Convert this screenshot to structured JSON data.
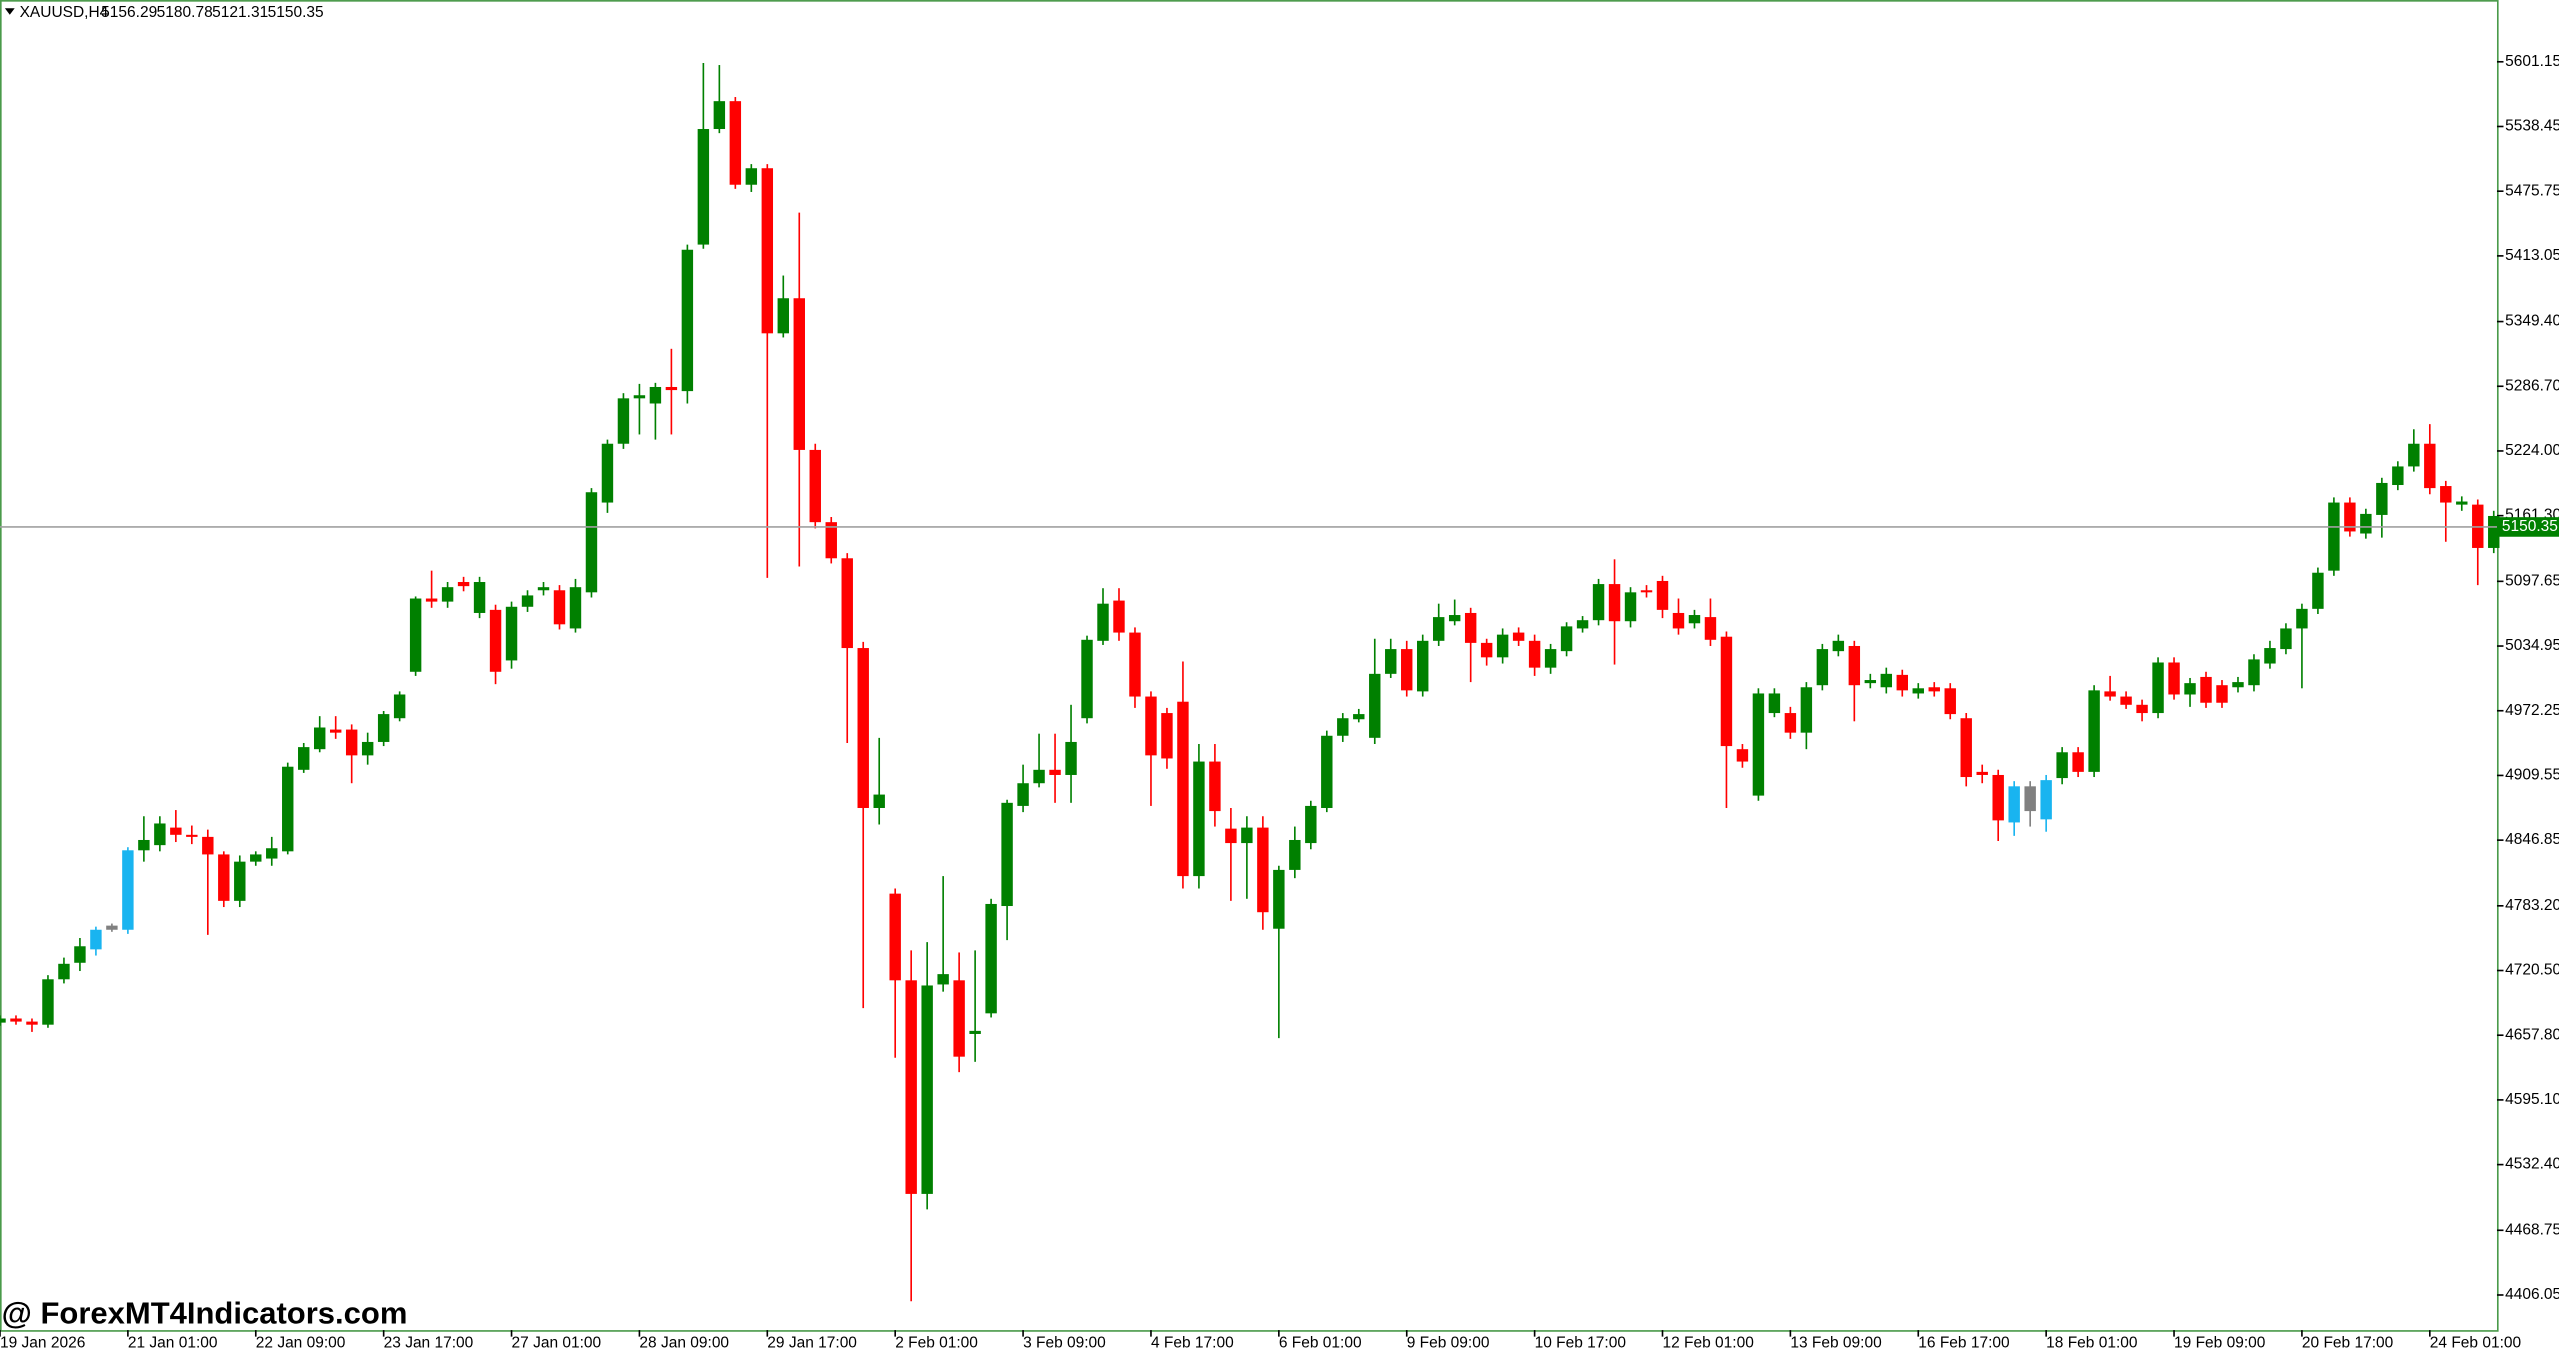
{
  "chart_data": {
    "type": "candlestick",
    "header": {
      "symbol": "XAUUSD,H4",
      "open": 5156.29,
      "high": 5180.78,
      "low": 5121.31,
      "close": 5150.35
    },
    "watermark": "@ ForexMT4Indicators.com",
    "up_color": "#008000",
    "down_color": "#ff0000",
    "ylim": [
      4372,
      5661
    ],
    "yticks": [
      5601.15,
      5538.45,
      5475.75,
      5413.05,
      {
        "value": 5349.4,
        "label": "5349.40"
      },
      {
        "value": 5286.7,
        "label": "5286.70"
      },
      {
        "value": 5224,
        "label": "5224.00"
      },
      {
        "value": 5161.3,
        "label": "5161.30"
      },
      5097.65,
      5034.95,
      4972.25,
      4909.55,
      4846.85,
      {
        "value": 4783.2,
        "label": "4783.20"
      },
      {
        "value": 4720.5,
        "label": "4720.50"
      },
      {
        "value": 4657.8,
        "label": "4657.80"
      },
      {
        "value": 4595.1,
        "label": "4595.10"
      },
      {
        "value": 4532.4,
        "label": "4532.40"
      },
      4468.75,
      4406.05
    ],
    "categories": [
      "19 Jan 2026",
      null,
      null,
      null,
      null,
      null,
      null,
      null,
      "21 Jan 01:00",
      null,
      null,
      null,
      null,
      null,
      null,
      null,
      "22 Jan 09:00",
      null,
      null,
      null,
      null,
      null,
      null,
      null,
      "23 Jan 17:00",
      null,
      null,
      null,
      null,
      null,
      null,
      null,
      "27 Jan 01:00",
      null,
      null,
      null,
      null,
      null,
      null,
      null,
      "28 Jan 09:00",
      null,
      null,
      null,
      null,
      null,
      null,
      null,
      "29 Jan 17:00",
      null,
      null,
      null,
      null,
      null,
      null,
      null,
      "2 Feb 01:00",
      null,
      null,
      null,
      null,
      null,
      null,
      null,
      "3 Feb 09:00",
      null,
      null,
      null,
      null,
      null,
      null,
      null,
      "4 Feb 17:00",
      null,
      null,
      null,
      null,
      null,
      null,
      null,
      "6 Feb 01:00",
      null,
      null,
      null,
      null,
      null,
      null,
      null,
      "9 Feb 09:00",
      null,
      null,
      null,
      null,
      null,
      null,
      null,
      "10 Feb 17:00",
      null,
      null,
      null,
      null,
      null,
      null,
      null,
      "12 Feb 01:00",
      null,
      null,
      null,
      null,
      null,
      null,
      null,
      "13 Feb 09:00",
      null,
      null,
      null,
      null,
      null,
      null,
      null,
      "16 Feb 17:00",
      null,
      null,
      null,
      null,
      null,
      null,
      null,
      "18 Feb 01:00",
      null,
      null,
      null,
      null,
      null,
      null,
      null,
      "19 Feb 09:00",
      null,
      null,
      null,
      null,
      null,
      null,
      null,
      "20 Feb 17:00",
      null,
      null,
      null,
      null,
      null,
      null,
      null,
      "24 Feb 01:00",
      null,
      null,
      null,
      null
    ],
    "candles": [
      {
        "o": 4670,
        "h": 4677,
        "l": 4667,
        "c": 4674
      },
      {
        "o": 4674,
        "h": 4677,
        "l": 4668,
        "c": 4671
      },
      {
        "o": 4671,
        "h": 4674,
        "l": 4661,
        "c": 4668
      },
      {
        "o": 4668,
        "h": 4716,
        "l": 4665,
        "c": 4712
      },
      {
        "o": 4712,
        "h": 4733,
        "l": 4708,
        "c": 4727
      },
      {
        "o": 4728,
        "h": 4752,
        "l": 4720,
        "c": 4744
      },
      {
        "o": 4741,
        "h": 4763,
        "l": 4735,
        "c": 4760,
        "color": "#19b4f0"
      },
      {
        "o": 4760,
        "h": 4766,
        "l": 4758,
        "c": 4764,
        "color": "#808080"
      },
      {
        "o": 4760,
        "h": 4840,
        "l": 4756,
        "c": 4837,
        "color": "#19b4f0"
      },
      {
        "o": 4837,
        "h": 4870,
        "l": 4826,
        "c": 4847
      },
      {
        "o": 4842,
        "h": 4870,
        "l": 4836,
        "c": 4863
      },
      {
        "o": 4859,
        "h": 4876,
        "l": 4845,
        "c": 4852
      },
      {
        "o": 4852,
        "h": 4861,
        "l": 4843,
        "c": 4850
      },
      {
        "o": 4850,
        "h": 4857,
        "l": 4755,
        "c": 4833
      },
      {
        "o": 4833,
        "h": 4836,
        "l": 4782,
        "c": 4788
      },
      {
        "o": 4788,
        "h": 4832,
        "l": 4782,
        "c": 4826
      },
      {
        "o": 4826,
        "h": 4836,
        "l": 4822,
        "c": 4833
      },
      {
        "o": 4829,
        "h": 4850,
        "l": 4822,
        "c": 4839
      },
      {
        "o": 4836,
        "h": 4922,
        "l": 4833,
        "c": 4918
      },
      {
        "o": 4915,
        "h": 4941,
        "l": 4912,
        "c": 4937
      },
      {
        "o": 4935,
        "h": 4967,
        "l": 4932,
        "c": 4956
      },
      {
        "o": 4954,
        "h": 4967,
        "l": 4945,
        "c": 4951
      },
      {
        "o": 4954,
        "h": 4959,
        "l": 4902,
        "c": 4929
      },
      {
        "o": 4929,
        "h": 4951,
        "l": 4920,
        "c": 4942
      },
      {
        "o": 4942,
        "h": 4972,
        "l": 4938,
        "c": 4969
      },
      {
        "o": 4965,
        "h": 4991,
        "l": 4962,
        "c": 4988
      },
      {
        "o": 5010,
        "h": 5083,
        "l": 5006,
        "c": 5081
      },
      {
        "o": 5081,
        "h": 5108,
        "l": 5072,
        "c": 5078
      },
      {
        "o": 5078,
        "h": 5097,
        "l": 5072,
        "c": 5092
      },
      {
        "o": 5097,
        "h": 5102,
        "l": 5088,
        "c": 5093
      },
      {
        "o": 5067,
        "h": 5102,
        "l": 5062,
        "c": 5097
      },
      {
        "o": 5070,
        "h": 5075,
        "l": 4998,
        "c": 5010
      },
      {
        "o": 5021,
        "h": 5078,
        "l": 5013,
        "c": 5073
      },
      {
        "o": 5073,
        "h": 5089,
        "l": 5068,
        "c": 5084
      },
      {
        "o": 5089,
        "h": 5097,
        "l": 5084,
        "c": 5092
      },
      {
        "o": 5089,
        "h": 5094,
        "l": 5051,
        "c": 5056
      },
      {
        "o": 5052,
        "h": 5100,
        "l": 5048,
        "c": 5092
      },
      {
        "o": 5087,
        "h": 5188,
        "l": 5082,
        "c": 5184
      },
      {
        "o": 5174,
        "h": 5235,
        "l": 5164,
        "c": 5231
      },
      {
        "o": 5231,
        "h": 5280,
        "l": 5226,
        "c": 5275
      },
      {
        "o": 5275,
        "h": 5289,
        "l": 5240,
        "c": 5278
      },
      {
        "o": 5270,
        "h": 5290,
        "l": 5235,
        "c": 5286
      },
      {
        "o": 5286,
        "h": 5323,
        "l": 5240,
        "c": 5283
      },
      {
        "o": 5282,
        "h": 5424,
        "l": 5270,
        "c": 5419
      },
      {
        "o": 5424,
        "h": 5600,
        "l": 5420,
        "c": 5536
      },
      {
        "o": 5536,
        "h": 5598,
        "l": 5532,
        "c": 5563
      },
      {
        "o": 5563,
        "h": 5567,
        "l": 5478,
        "c": 5482
      },
      {
        "o": 5482,
        "h": 5502,
        "l": 5475,
        "c": 5498
      },
      {
        "o": 5498,
        "h": 5502,
        "l": 5101,
        "c": 5338
      },
      {
        "o": 5338,
        "h": 5394,
        "l": 5334,
        "c": 5372
      },
      {
        "o": 5372,
        "h": 5455,
        "l": 5112,
        "c": 5225
      },
      {
        "o": 5225,
        "h": 5231,
        "l": 5149,
        "c": 5155
      },
      {
        "o": 5155,
        "h": 5160,
        "l": 5115,
        "c": 5120
      },
      {
        "o": 5120,
        "h": 5125,
        "l": 4941,
        "c": 5033
      },
      {
        "o": 5033,
        "h": 5039,
        "l": 4684,
        "c": 4878
      },
      {
        "o": 4878,
        "h": 4946,
        "l": 4862,
        "c": 4891
      },
      {
        "o": 4795,
        "h": 4800,
        "l": 4636,
        "c": 4711
      },
      {
        "o": 4711,
        "h": 4740,
        "l": 4400,
        "c": 4504
      },
      {
        "o": 4504,
        "h": 4748,
        "l": 4489,
        "c": 4706
      },
      {
        "o": 4707,
        "h": 4812,
        "l": 4700,
        "c": 4717
      },
      {
        "o": 4711,
        "h": 4738,
        "l": 4622,
        "c": 4637
      },
      {
        "o": 4659,
        "h": 4740,
        "l": 4632,
        "c": 4662
      },
      {
        "o": 4679,
        "h": 4790,
        "l": 4675,
        "c": 4785
      },
      {
        "o": 4783,
        "h": 4886,
        "l": 4750,
        "c": 4883
      },
      {
        "o": 4880,
        "h": 4920,
        "l": 4874,
        "c": 4902
      },
      {
        "o": 4902,
        "h": 4950,
        "l": 4898,
        "c": 4915
      },
      {
        "o": 4915,
        "h": 4950,
        "l": 4883,
        "c": 4910
      },
      {
        "o": 4910,
        "h": 4978,
        "l": 4883,
        "c": 4942
      },
      {
        "o": 4965,
        "h": 5045,
        "l": 4960,
        "c": 5041
      },
      {
        "o": 5040,
        "h": 5091,
        "l": 5036,
        "c": 5076
      },
      {
        "o": 5079,
        "h": 5091,
        "l": 5040,
        "c": 5048
      },
      {
        "o": 5048,
        "h": 5053,
        "l": 4975,
        "c": 4986
      },
      {
        "o": 4986,
        "h": 4991,
        "l": 4880,
        "c": 4929
      },
      {
        "o": 4970,
        "h": 4975,
        "l": 4916,
        "c": 4926
      },
      {
        "o": 4981,
        "h": 5020,
        "l": 4800,
        "c": 4812
      },
      {
        "o": 4812,
        "h": 4940,
        "l": 4800,
        "c": 4923
      },
      {
        "o": 4923,
        "h": 4940,
        "l": 4860,
        "c": 4875
      },
      {
        "o": 4858,
        "h": 4878,
        "l": 4788,
        "c": 4844
      },
      {
        "o": 4844,
        "h": 4870,
        "l": 4790,
        "c": 4859
      },
      {
        "o": 4859,
        "h": 4870,
        "l": 4760,
        "c": 4777
      },
      {
        "o": 4761,
        "h": 4822,
        "l": 4655,
        "c": 4818
      },
      {
        "o": 4818,
        "h": 4860,
        "l": 4810,
        "c": 4847
      },
      {
        "o": 4844,
        "h": 4885,
        "l": 4838,
        "c": 4880
      },
      {
        "o": 4878,
        "h": 4953,
        "l": 4874,
        "c": 4948
      },
      {
        "o": 4948,
        "h": 4970,
        "l": 4942,
        "c": 4965
      },
      {
        "o": 4964,
        "h": 4974,
        "l": 4961,
        "c": 4969
      },
      {
        "o": 4946,
        "h": 5042,
        "l": 4940,
        "c": 5008
      },
      {
        "o": 5008,
        "h": 5042,
        "l": 5004,
        "c": 5032
      },
      {
        "o": 5032,
        "h": 5040,
        "l": 4986,
        "c": 4992
      },
      {
        "o": 4991,
        "h": 5046,
        "l": 4986,
        "c": 5040
      },
      {
        "o": 5040,
        "h": 5076,
        "l": 5035,
        "c": 5063
      },
      {
        "o": 5059,
        "h": 5080,
        "l": 5055,
        "c": 5065
      },
      {
        "o": 5067,
        "h": 5072,
        "l": 5000,
        "c": 5038
      },
      {
        "o": 5038,
        "h": 5042,
        "l": 5016,
        "c": 5024
      },
      {
        "o": 5024,
        "h": 5052,
        "l": 5018,
        "c": 5046
      },
      {
        "o": 5048,
        "h": 5053,
        "l": 5035,
        "c": 5040
      },
      {
        "o": 5040,
        "h": 5046,
        "l": 5006,
        "c": 5014
      },
      {
        "o": 5014,
        "h": 5037,
        "l": 5008,
        "c": 5032
      },
      {
        "o": 5030,
        "h": 5058,
        "l": 5025,
        "c": 5054
      },
      {
        "o": 5052,
        "h": 5064,
        "l": 5048,
        "c": 5060
      },
      {
        "o": 5060,
        "h": 5100,
        "l": 5055,
        "c": 5095
      },
      {
        "o": 5095,
        "h": 5119,
        "l": 5017,
        "c": 5059
      },
      {
        "o": 5059,
        "h": 5092,
        "l": 5053,
        "c": 5087
      },
      {
        "o": 5089,
        "h": 5094,
        "l": 5082,
        "c": 5087
      },
      {
        "o": 5098,
        "h": 5103,
        "l": 5062,
        "c": 5070
      },
      {
        "o": 5067,
        "h": 5081,
        "l": 5046,
        "c": 5052
      },
      {
        "o": 5057,
        "h": 5070,
        "l": 5052,
        "c": 5065
      },
      {
        "o": 5063,
        "h": 5081,
        "l": 5035,
        "c": 5041
      },
      {
        "o": 5044,
        "h": 5049,
        "l": 4878,
        "c": 4938
      },
      {
        "o": 4935,
        "h": 4940,
        "l": 4917,
        "c": 4923
      },
      {
        "o": 4890,
        "h": 4994,
        "l": 4885,
        "c": 4989
      },
      {
        "o": 4970,
        "h": 4994,
        "l": 4966,
        "c": 4989
      },
      {
        "o": 4970,
        "h": 4976,
        "l": 4945,
        "c": 4951
      },
      {
        "o": 4951,
        "h": 5000,
        "l": 4935,
        "c": 4995
      },
      {
        "o": 4997,
        "h": 5037,
        "l": 4992,
        "c": 5032
      },
      {
        "o": 5030,
        "h": 5046,
        "l": 5025,
        "c": 5040
      },
      {
        "o": 5035,
        "h": 5040,
        "l": 4962,
        "c": 4997
      },
      {
        "o": 4999,
        "h": 5008,
        "l": 4994,
        "c": 5002
      },
      {
        "o": 4995,
        "h": 5014,
        "l": 4989,
        "c": 5008
      },
      {
        "o": 5007,
        "h": 5012,
        "l": 4986,
        "c": 4992
      },
      {
        "o": 4989,
        "h": 4999,
        "l": 4984,
        "c": 4994
      },
      {
        "o": 4995,
        "h": 5000,
        "l": 4986,
        "c": 4991
      },
      {
        "o": 4994,
        "h": 4999,
        "l": 4964,
        "c": 4969
      },
      {
        "o": 4965,
        "h": 4970,
        "l": 4899,
        "c": 4908
      },
      {
        "o": 4913,
        "h": 4920,
        "l": 4902,
        "c": 4910
      },
      {
        "o": 4910,
        "h": 4915,
        "l": 4846,
        "c": 4866
      },
      {
        "o": 4864,
        "h": 4904,
        "l": 4851,
        "c": 4899,
        "color": "#19b4f0"
      },
      {
        "o": 4875,
        "h": 4904,
        "l": 4860,
        "c": 4899,
        "color": "#808080"
      },
      {
        "o": 4867,
        "h": 4910,
        "l": 4855,
        "c": 4905,
        "color": "#19b4f0"
      },
      {
        "o": 4907,
        "h": 4937,
        "l": 4901,
        "c": 4932
      },
      {
        "o": 4932,
        "h": 4937,
        "l": 4908,
        "c": 4913
      },
      {
        "o": 4913,
        "h": 4997,
        "l": 4908,
        "c": 4992
      },
      {
        "o": 4991,
        "h": 5006,
        "l": 4982,
        "c": 4986
      },
      {
        "o": 4986,
        "h": 4991,
        "l": 4974,
        "c": 4978
      },
      {
        "o": 4978,
        "h": 4983,
        "l": 4962,
        "c": 4970
      },
      {
        "o": 4970,
        "h": 5024,
        "l": 4965,
        "c": 5019
      },
      {
        "o": 5019,
        "h": 5024,
        "l": 4983,
        "c": 4988
      },
      {
        "o": 4988,
        "h": 5004,
        "l": 4976,
        "c": 4999
      },
      {
        "o": 5005,
        "h": 5010,
        "l": 4975,
        "c": 4980
      },
      {
        "o": 4997,
        "h": 5002,
        "l": 4975,
        "c": 4980
      },
      {
        "o": 4995,
        "h": 5005,
        "l": 4990,
        "c": 5000
      },
      {
        "o": 4997,
        "h": 5027,
        "l": 4991,
        "c": 5022
      },
      {
        "o": 5018,
        "h": 5040,
        "l": 5013,
        "c": 5033
      },
      {
        "o": 5032,
        "h": 5057,
        "l": 5027,
        "c": 5052
      },
      {
        "o": 5052,
        "h": 5076,
        "l": 4994,
        "c": 5071
      },
      {
        "o": 5071,
        "h": 5111,
        "l": 5066,
        "c": 5106
      },
      {
        "o": 5108,
        "h": 5179,
        "l": 5103,
        "c": 5174
      },
      {
        "o": 5174,
        "h": 5179,
        "l": 5141,
        "c": 5146
      },
      {
        "o": 5144,
        "h": 5168,
        "l": 5139,
        "c": 5163
      },
      {
        "o": 5162,
        "h": 5198,
        "l": 5140,
        "c": 5193
      },
      {
        "o": 5191,
        "h": 5214,
        "l": 5186,
        "c": 5209
      },
      {
        "o": 5209,
        "h": 5245,
        "l": 5204,
        "c": 5231
      },
      {
        "o": 5231,
        "h": 5250,
        "l": 5182,
        "c": 5188
      },
      {
        "o": 5190,
        "h": 5195,
        "l": 5136,
        "c": 5174
      },
      {
        "o": 5172,
        "h": 5180,
        "l": 5166,
        "c": 5175
      },
      {
        "o": 5172,
        "h": 5177,
        "l": 5094,
        "c": 5130
      },
      {
        "o": 5130,
        "h": 5166,
        "l": 5125,
        "c": 5161
      }
    ]
  }
}
